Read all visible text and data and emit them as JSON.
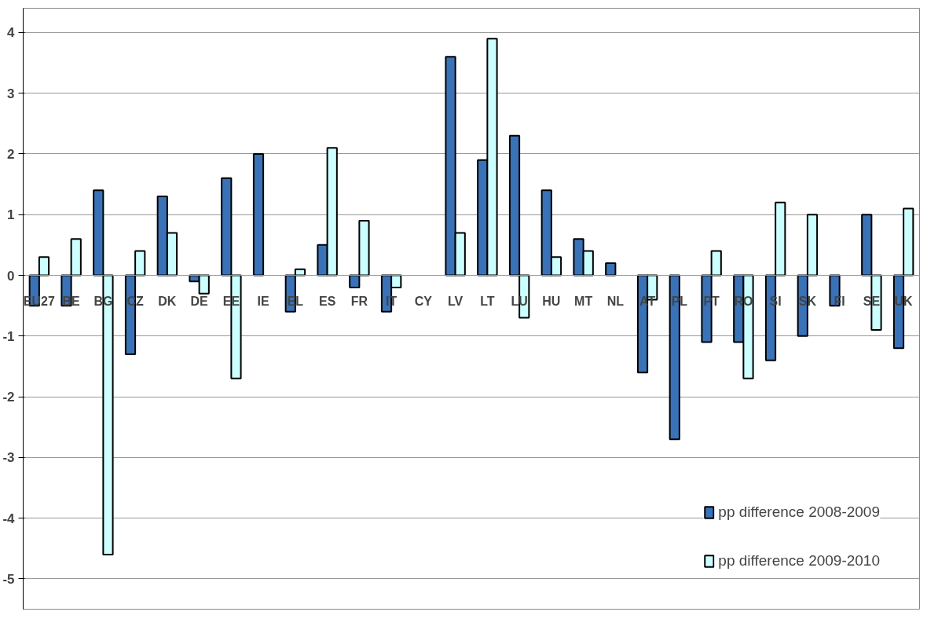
{
  "chart_data": {
    "type": "bar",
    "categories": [
      "EU27",
      "BE",
      "BG",
      "CZ",
      "DK",
      "DE",
      "EE",
      "IE",
      "EL",
      "ES",
      "FR",
      "IT",
      "CY",
      "LV",
      "LT",
      "LU",
      "HU",
      "MT",
      "NL",
      "AT",
      "PL",
      "PT",
      "RO",
      "SI",
      "SK",
      "FI",
      "SE",
      "UK"
    ],
    "series": [
      {
        "name": "pp difference 2008-2009",
        "color": "#3a72b8",
        "values": [
          -0.5,
          -0.5,
          1.4,
          -1.3,
          1.3,
          -0.1,
          1.6,
          2.0,
          -0.6,
          0.5,
          -0.2,
          -0.6,
          null,
          3.6,
          1.9,
          2.3,
          1.4,
          0.6,
          0.2,
          -1.6,
          -2.7,
          -1.1,
          -1.1,
          -1.4,
          -1.0,
          -0.5,
          1.0,
          -1.2
        ]
      },
      {
        "name": "pp difference 2009-2010",
        "color": "#ccffff",
        "values": [
          0.3,
          0.6,
          -4.6,
          0.4,
          0.7,
          -0.3,
          -1.7,
          null,
          0.1,
          2.1,
          0.9,
          -0.2,
          null,
          0.7,
          3.9,
          -0.7,
          0.3,
          0.4,
          null,
          -0.4,
          null,
          0.4,
          -1.7,
          1.2,
          1.0,
          null,
          -0.9,
          1.1
        ]
      }
    ],
    "ylim": [
      -5.5,
      4.4
    ],
    "yticks": [
      -5,
      -4,
      -3,
      -2,
      -1,
      0,
      1,
      2,
      3,
      4
    ],
    "grid": "y",
    "legend": "bottom right"
  }
}
